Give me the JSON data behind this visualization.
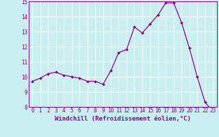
{
  "x": [
    0,
    1,
    2,
    3,
    4,
    5,
    6,
    7,
    8,
    9,
    10,
    11,
    12,
    13,
    14,
    15,
    16,
    17,
    18,
    19,
    20,
    21,
    22,
    23
  ],
  "y": [
    9.7,
    9.9,
    10.2,
    10.3,
    10.1,
    10.0,
    9.9,
    9.7,
    9.7,
    9.5,
    10.4,
    11.6,
    11.8,
    13.3,
    12.9,
    13.5,
    14.1,
    14.9,
    14.9,
    13.6,
    11.9,
    10.0,
    8.3,
    7.7
  ],
  "line_color": "#880088",
  "marker_color": "#880088",
  "bg_color": "#c8eef0",
  "grid_color": "#b0dde0",
  "xlabel": "Windchill (Refroidissement éolien,°C)",
  "ylim": [
    8,
    15
  ],
  "xlim_min": -0.5,
  "xlim_max": 23.5,
  "yticks": [
    8,
    9,
    10,
    11,
    12,
    13,
    14,
    15
  ],
  "xticks": [
    0,
    1,
    2,
    3,
    4,
    5,
    6,
    7,
    8,
    9,
    10,
    11,
    12,
    13,
    14,
    15,
    16,
    17,
    18,
    19,
    20,
    21,
    22,
    23
  ],
  "tick_fontsize": 5.5,
  "xlabel_fontsize": 6.5,
  "marker_size": 2.0,
  "line_width": 0.9
}
